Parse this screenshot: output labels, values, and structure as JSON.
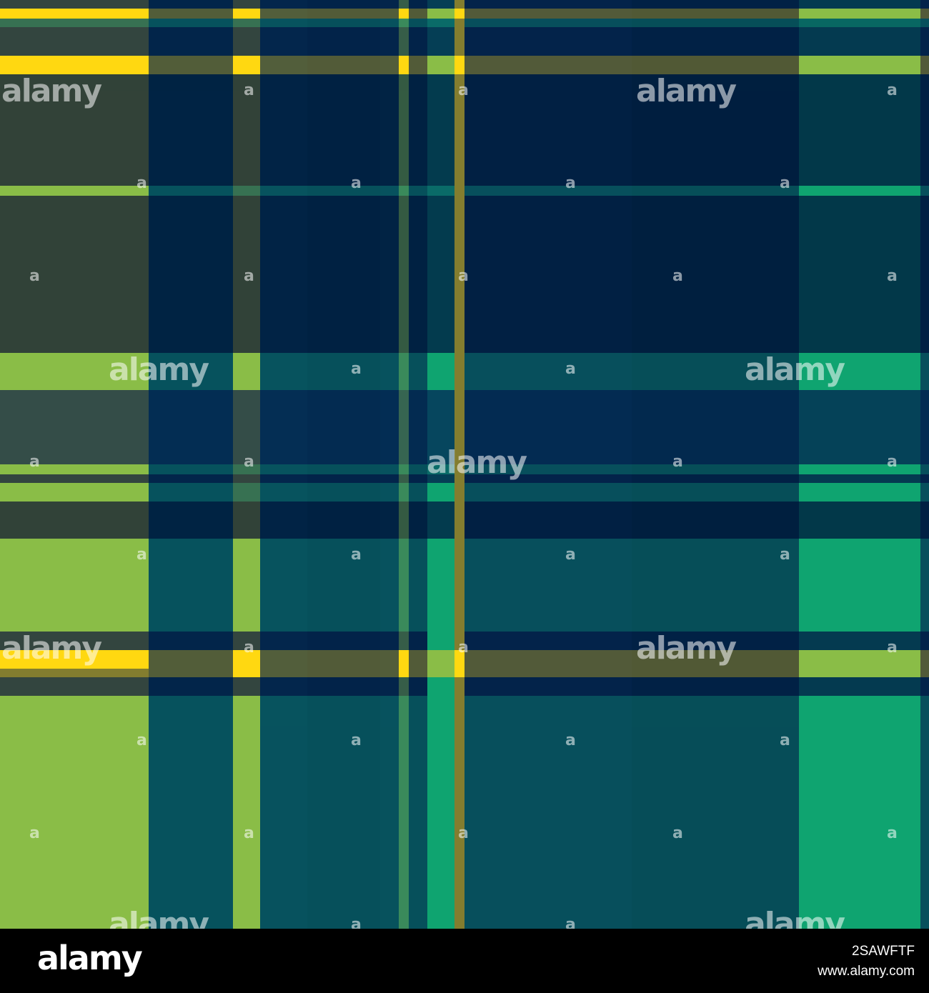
{
  "pattern": {
    "name_hint": "",
    "colors": {
      "navy": "#03234a",
      "deep_navy": "#001f3f",
      "teal": "#0a6b68",
      "dark_teal": "#07615a",
      "bright_green": "#0fa470",
      "lime": "#8abd47",
      "olive": "#837d2f",
      "yellow": "#ffd811"
    }
  },
  "watermark": {
    "logo_text": "alamy",
    "mark_text": "a"
  },
  "footer": {
    "logo": "alamy",
    "image_id": "2SAWFTF",
    "site": "www.alamy.com"
  }
}
